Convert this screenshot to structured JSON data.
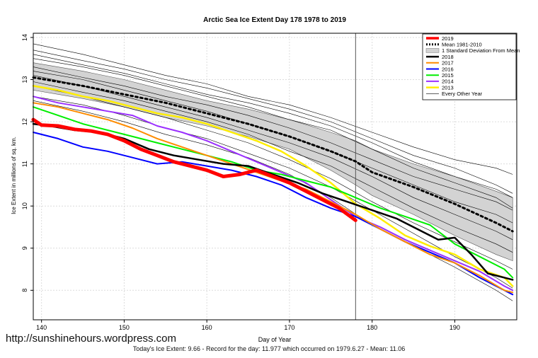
{
  "watermark": "http://sunshinehours.wordpress.com",
  "footnote": "Today's Ice Extent: 9.66 - Record for the day: 11.977 which occurred on 1979.6.27 - Mean: 11.06",
  "chart_data": {
    "type": "line",
    "title": "Arctic Sea Ice Extent Day 178 1978 to 2019",
    "xlabel": "Day of Year",
    "ylabel": "Ice Extent in millions of sq. km.",
    "xlim": [
      139,
      197.5
    ],
    "ylim": [
      7.3,
      14.1
    ],
    "xticks": [
      140,
      150,
      160,
      170,
      180,
      190
    ],
    "yticks": [
      8,
      9,
      10,
      11,
      12,
      13,
      14
    ],
    "grid": true,
    "legend_position": "top-right",
    "vline": 178,
    "std_band": {
      "name": "1 Standard Deviation From Mean",
      "color": "#d3d3d3",
      "x": [
        139,
        145,
        150,
        155,
        160,
        165,
        170,
        175,
        178,
        180,
        185,
        190,
        195,
        197
      ],
      "upper": [
        13.4,
        13.2,
        13.0,
        12.75,
        12.5,
        12.3,
        12.05,
        11.75,
        11.55,
        11.35,
        11.0,
        10.7,
        10.35,
        10.2
      ],
      "lower": [
        12.75,
        12.55,
        12.35,
        12.1,
        11.9,
        11.65,
        11.35,
        10.85,
        10.5,
        10.25,
        9.8,
        9.3,
        8.85,
        8.7
      ]
    },
    "background_years": {
      "name": "Every Other Year",
      "color": "#000000",
      "x": [
        139,
        145,
        150,
        155,
        160,
        165,
        170,
        175,
        180,
        185,
        190,
        195,
        197
      ],
      "lines": [
        [
          13.85,
          13.6,
          13.35,
          13.1,
          12.9,
          12.6,
          12.4,
          12.1,
          11.75,
          11.4,
          11.1,
          10.9,
          10.75
        ],
        [
          13.7,
          13.45,
          13.25,
          13.0,
          12.8,
          12.55,
          12.3,
          12.0,
          11.6,
          11.2,
          10.9,
          10.5,
          10.3
        ],
        [
          13.6,
          13.35,
          13.15,
          12.9,
          12.65,
          12.45,
          12.2,
          11.9,
          11.5,
          11.05,
          10.7,
          10.4,
          10.2
        ],
        [
          13.5,
          13.3,
          13.1,
          12.85,
          12.6,
          12.35,
          12.05,
          11.8,
          11.35,
          10.9,
          10.55,
          10.2,
          9.95
        ],
        [
          13.3,
          13.05,
          12.85,
          12.6,
          12.4,
          12.15,
          11.85,
          11.5,
          11.1,
          10.7,
          10.4,
          10.1,
          9.9
        ],
        [
          13.2,
          13.0,
          12.75,
          12.5,
          12.25,
          11.95,
          11.65,
          11.3,
          10.9,
          10.5,
          10.1,
          9.8,
          9.6
        ],
        [
          13.1,
          12.85,
          12.6,
          12.35,
          12.1,
          11.8,
          11.5,
          11.15,
          10.7,
          10.2,
          9.8,
          9.4,
          9.2
        ],
        [
          12.95,
          12.7,
          12.5,
          12.25,
          12.0,
          11.7,
          11.3,
          10.95,
          10.45,
          9.95,
          9.5,
          9.1,
          8.9
        ],
        [
          12.85,
          12.6,
          12.35,
          12.1,
          11.8,
          11.5,
          11.1,
          10.65,
          10.1,
          9.6,
          9.15,
          8.7,
          8.5
        ],
        [
          12.6,
          12.4,
          12.15,
          11.85,
          11.6,
          11.25,
          10.9,
          10.45,
          9.9,
          9.35,
          8.8,
          8.3,
          8.05
        ],
        [
          12.5,
          12.25,
          12.0,
          11.7,
          11.45,
          11.15,
          10.75,
          10.2,
          9.55,
          9.05,
          8.55,
          8.0,
          7.75
        ]
      ]
    },
    "series": [
      {
        "name": "2019",
        "color": "#ff0000",
        "width": 5,
        "dash": "",
        "x": [
          139,
          140,
          142,
          144,
          146,
          148,
          150,
          152,
          154,
          156,
          158,
          160,
          162,
          164,
          165,
          166,
          168,
          170,
          172,
          174,
          176,
          178
        ],
        "values": [
          12.05,
          11.92,
          11.9,
          11.82,
          11.78,
          11.7,
          11.55,
          11.35,
          11.2,
          11.05,
          10.95,
          10.85,
          10.7,
          10.75,
          10.8,
          10.85,
          10.7,
          10.55,
          10.35,
          10.15,
          9.95,
          9.66
        ]
      },
      {
        "name": "Mean 1981-2010",
        "color": "#000000",
        "width": 3,
        "dash": "3,4",
        "x": [
          139,
          142,
          145,
          150,
          155,
          160,
          165,
          170,
          175,
          178,
          180,
          185,
          190,
          195,
          197
        ],
        "values": [
          13.05,
          12.95,
          12.85,
          12.65,
          12.45,
          12.2,
          11.95,
          11.65,
          11.3,
          11.06,
          10.8,
          10.45,
          10.05,
          9.6,
          9.4
        ]
      },
      {
        "name": "2018",
        "color": "#000000",
        "width": 2.5,
        "dash": "",
        "x": [
          139,
          141,
          144,
          147,
          150,
          153,
          156,
          159,
          162,
          165,
          168,
          171,
          174,
          177,
          180,
          183,
          186,
          188,
          190,
          192,
          194,
          196,
          197
        ],
        "values": [
          11.95,
          11.9,
          11.8,
          11.75,
          11.6,
          11.35,
          11.2,
          11.1,
          11.0,
          10.95,
          10.75,
          10.55,
          10.3,
          10.1,
          9.9,
          9.7,
          9.4,
          9.2,
          9.25,
          8.85,
          8.4,
          8.3,
          8.25
        ]
      },
      {
        "name": "2017",
        "color": "#ff8c00",
        "width": 2,
        "dash": "",
        "x": [
          139,
          142,
          145,
          148,
          151,
          154,
          157,
          160,
          163,
          166,
          169,
          172,
          175,
          178,
          181,
          184,
          187,
          190,
          193,
          196,
          197
        ],
        "values": [
          12.45,
          12.35,
          12.2,
          12.05,
          11.85,
          11.6,
          11.4,
          11.2,
          11.0,
          10.8,
          10.6,
          10.4,
          10.1,
          9.8,
          9.45,
          9.15,
          8.85,
          8.65,
          8.35,
          8.0,
          7.95
        ]
      },
      {
        "name": "2016",
        "color": "#0000ff",
        "width": 2,
        "dash": "",
        "x": [
          139,
          142,
          145,
          148,
          151,
          154,
          157,
          160,
          163,
          166,
          169,
          172,
          175,
          178,
          181,
          184,
          187,
          190,
          193,
          196,
          197
        ],
        "values": [
          11.75,
          11.6,
          11.4,
          11.3,
          11.15,
          11.0,
          11.05,
          10.95,
          10.85,
          10.7,
          10.5,
          10.2,
          9.95,
          9.75,
          9.45,
          9.15,
          8.9,
          8.65,
          8.3,
          8.0,
          7.9
        ]
      },
      {
        "name": "2015",
        "color": "#00ee00",
        "width": 2,
        "dash": "",
        "x": [
          139,
          142,
          145,
          148,
          151,
          154,
          157,
          160,
          163,
          166,
          169,
          172,
          175,
          178,
          181,
          184,
          187,
          190,
          193,
          196,
          197
        ],
        "values": [
          12.35,
          12.15,
          11.95,
          11.8,
          11.65,
          11.5,
          11.35,
          11.2,
          11.05,
          10.85,
          10.75,
          10.6,
          10.45,
          10.2,
          9.95,
          9.75,
          9.55,
          9.1,
          8.8,
          8.5,
          8.3
        ]
      },
      {
        "name": "2014",
        "color": "#9b30ff",
        "width": 2,
        "dash": "",
        "x": [
          139,
          142,
          145,
          148,
          151,
          154,
          157,
          160,
          163,
          166,
          169,
          172,
          175,
          178,
          181,
          184,
          187,
          190,
          193,
          196,
          197
        ],
        "values": [
          12.6,
          12.45,
          12.35,
          12.25,
          12.15,
          11.9,
          11.75,
          11.55,
          11.3,
          11.05,
          10.8,
          10.55,
          10.15,
          9.75,
          9.5,
          9.2,
          8.95,
          8.7,
          8.45,
          8.1,
          8.0
        ]
      },
      {
        "name": "2013",
        "color": "#ffee00",
        "width": 2.5,
        "dash": "",
        "x": [
          139,
          142,
          145,
          148,
          151,
          154,
          157,
          160,
          163,
          166,
          169,
          172,
          175,
          178,
          181,
          184,
          187,
          190,
          193,
          196,
          197
        ],
        "values": [
          12.85,
          12.75,
          12.6,
          12.5,
          12.35,
          12.2,
          12.1,
          11.95,
          11.75,
          11.55,
          11.3,
          10.95,
          10.55,
          10.05,
          9.7,
          9.3,
          9.05,
          8.85,
          8.5,
          8.3,
          8.1
        ]
      }
    ]
  }
}
